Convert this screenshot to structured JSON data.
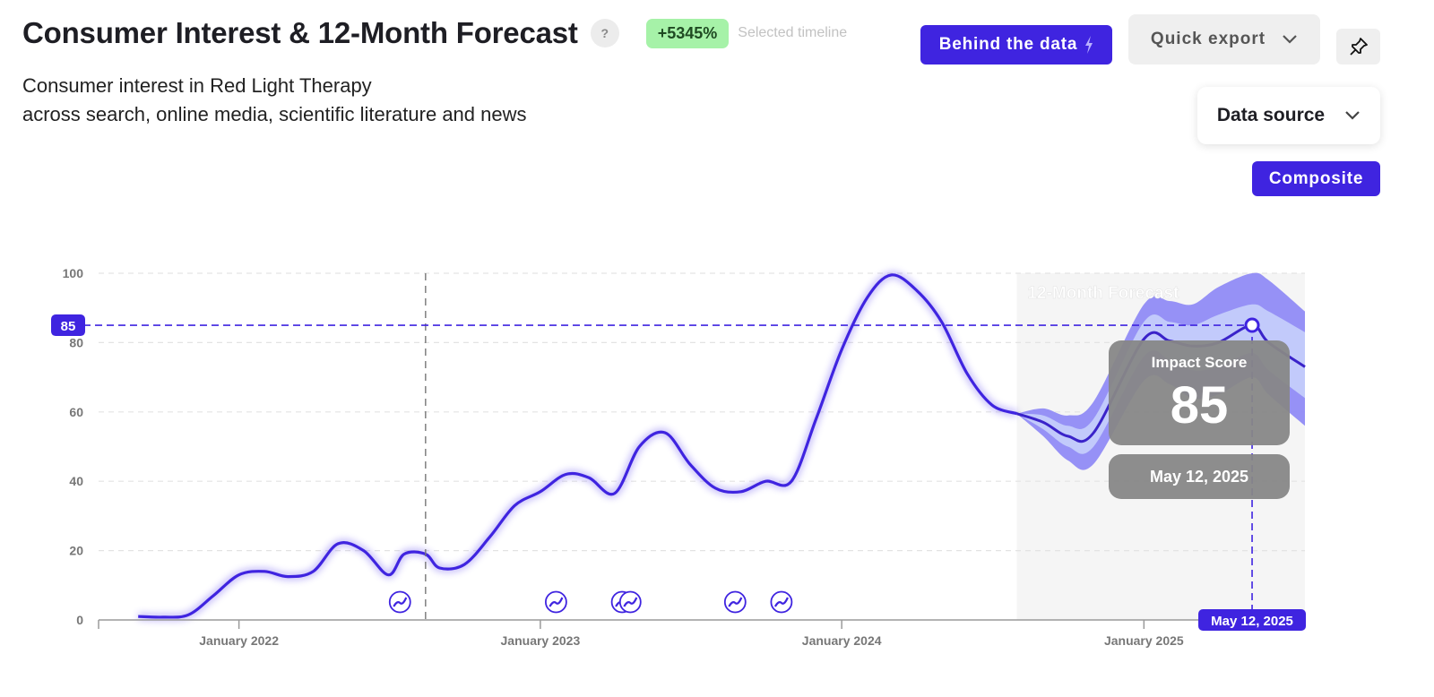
{
  "header": {
    "title": "Consumer Interest & 12-Month Forecast",
    "help_label": "?",
    "change_badge": "+5345%",
    "change_note": "Selected timeline",
    "subtitle_line1": "Consumer interest in Red Light Therapy",
    "subtitle_line2": "across search, online media, scientific literature and news"
  },
  "toolbar": {
    "behind_label": "Behind the data",
    "export_label": "Quick export",
    "data_source_label": "Data source",
    "composite_label": "Composite"
  },
  "icons": {
    "help": "question-icon",
    "bolt": "lightning-icon",
    "export_chevron": "chevron-down-icon",
    "pin": "pin-icon",
    "source_chevron": "chevron-down-icon",
    "event_marker": "trend-event-icon"
  },
  "colors": {
    "accent": "#3f24e0",
    "badge_bg": "#a6f2a8",
    "forecast_outer": "#8c86f6",
    "forecast_inner": "#c4cefb",
    "forecast_bg": "#f5f5f5",
    "tooltip_bg": "#878787"
  },
  "chart_data": {
    "type": "line",
    "title": "",
    "xlabel": "",
    "ylabel": "",
    "ylim": [
      0,
      100
    ],
    "yticks": [
      0,
      20,
      40,
      60,
      80,
      100
    ],
    "xticks": [
      {
        "date": "2022-01-01",
        "label": "January 2022"
      },
      {
        "date": "2023-01-01",
        "label": "January 2023"
      },
      {
        "date": "2024-01-01",
        "label": "January 2024"
      },
      {
        "date": "2025-01-01",
        "label": "January 2025"
      }
    ],
    "xlim": [
      "2021-07-15",
      "2025-07-15"
    ],
    "grid": true,
    "reference_line": {
      "date": "2022-08-15"
    },
    "series": [
      {
        "points": [
          [
            "2021-09-01",
            1
          ],
          [
            "2021-10-01",
            0.8
          ],
          [
            "2021-11-01",
            1.5
          ],
          [
            "2021-12-01",
            7
          ],
          [
            "2022-01-01",
            13
          ],
          [
            "2022-02-01",
            14
          ],
          [
            "2022-03-01",
            12.5
          ],
          [
            "2022-04-01",
            14
          ],
          [
            "2022-05-01",
            22
          ],
          [
            "2022-06-01",
            20
          ],
          [
            "2022-07-01",
            13
          ],
          [
            "2022-07-20",
            19
          ],
          [
            "2022-08-15",
            19
          ],
          [
            "2022-09-01",
            15
          ],
          [
            "2022-10-01",
            16
          ],
          [
            "2022-11-01",
            24
          ],
          [
            "2022-12-01",
            33
          ],
          [
            "2023-01-01",
            37
          ],
          [
            "2023-02-01",
            42
          ],
          [
            "2023-03-01",
            41
          ],
          [
            "2023-04-01",
            36.5
          ],
          [
            "2023-05-01",
            50
          ],
          [
            "2023-06-01",
            54
          ],
          [
            "2023-07-01",
            45
          ],
          [
            "2023-08-01",
            38
          ],
          [
            "2023-09-01",
            37
          ],
          [
            "2023-10-01",
            40
          ],
          [
            "2023-11-01",
            40
          ],
          [
            "2023-12-01",
            58
          ],
          [
            "2024-01-01",
            78
          ],
          [
            "2024-02-01",
            93
          ],
          [
            "2024-03-01",
            99.5
          ],
          [
            "2024-04-01",
            95
          ],
          [
            "2024-05-01",
            86
          ],
          [
            "2024-06-01",
            71
          ],
          [
            "2024-07-01",
            62
          ],
          [
            "2024-07-31",
            59.5
          ]
        ]
      },
      {
        "forecast": true,
        "points": [
          [
            "2024-07-31",
            59.5
          ],
          [
            "2024-09-01",
            57
          ],
          [
            "2024-10-01",
            53
          ],
          [
            "2024-11-01",
            54
          ],
          [
            "2025-01-01",
            81
          ],
          [
            "2025-02-01",
            80.5
          ],
          [
            "2025-03-01",
            79
          ],
          [
            "2025-04-01",
            80
          ],
          [
            "2025-05-12",
            85
          ],
          [
            "2025-06-01",
            80
          ],
          [
            "2025-07-15",
            73
          ]
        ],
        "band_inner": [
          [
            "2024-07-31",
            59.5,
            59.5
          ],
          [
            "2024-09-01",
            55,
            59
          ],
          [
            "2024-10-01",
            50,
            56
          ],
          [
            "2024-11-01",
            50,
            58
          ],
          [
            "2025-01-01",
            76,
            86
          ],
          [
            "2025-02-01",
            75,
            86
          ],
          [
            "2025-03-01",
            72,
            85
          ],
          [
            "2025-04-01",
            73,
            88
          ],
          [
            "2025-05-12",
            77,
            91
          ],
          [
            "2025-06-01",
            72,
            89
          ],
          [
            "2025-07-15",
            64,
            83
          ]
        ],
        "band_outer": [
          [
            "2024-07-31",
            59.5,
            59.5
          ],
          [
            "2024-09-01",
            53,
            61
          ],
          [
            "2024-10-01",
            46,
            59
          ],
          [
            "2024-11-01",
            45,
            63
          ],
          [
            "2025-01-01",
            69,
            91
          ],
          [
            "2025-02-01",
            68,
            92
          ],
          [
            "2025-03-01",
            64,
            91
          ],
          [
            "2025-04-01",
            65,
            96
          ],
          [
            "2025-05-12",
            70,
            100
          ],
          [
            "2025-06-01",
            65,
            98
          ],
          [
            "2025-07-15",
            56,
            89
          ]
        ]
      }
    ],
    "forecast_label": "12-Month Forecast",
    "forecast_start": "2024-07-31",
    "event_markers": [
      "2022-07-15",
      "2023-01-20",
      "2023-04-10",
      "2023-04-20",
      "2023-08-25",
      "2023-10-20"
    ],
    "selected": {
      "date": "2025-05-12",
      "value": 85,
      "value_label": "85",
      "score_title": "Impact Score",
      "date_label": "May 12, 2025"
    }
  }
}
